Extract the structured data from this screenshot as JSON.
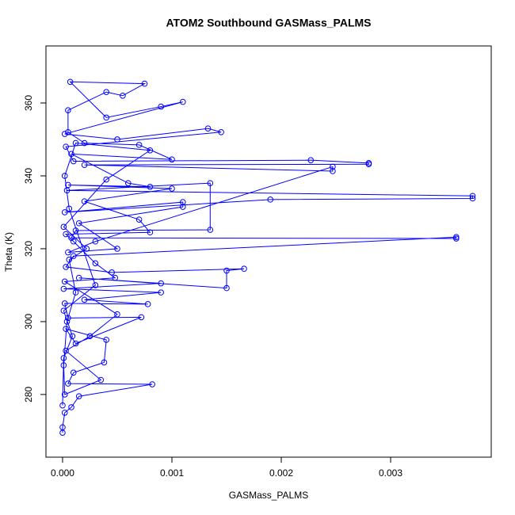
{
  "chart_data": {
    "type": "scatter",
    "lines": true,
    "title": "ATOM2 Southbound GASMass_PALMS",
    "x_label": "GASMass_PALMS",
    "y_label": "Theta (K)",
    "color": "#0000ff",
    "xlim": [
      -0.000152,
      0.00392
    ],
    "ylim": [
      262.8,
      375.65
    ],
    "xticks": [
      {
        "value": 0,
        "label": "0.000"
      },
      {
        "value": 0.001,
        "label": "0.001"
      },
      {
        "value": 0.002,
        "label": "0.002"
      },
      {
        "value": 0.003,
        "label": "0.003"
      }
    ],
    "yticks": [
      280,
      300,
      320,
      340,
      360
    ],
    "x": [
      0.0,
      0.0,
      2e-05,
      8e-05,
      0.00015,
      0.00082,
      5e-05,
      0.0001,
      0.00038,
      0.0004,
      3e-05,
      0.00012,
      0.00072,
      5e-05,
      2e-05,
      0.00078,
      0.0002,
      0.0009,
      1e-05,
      0.0009,
      0.00015,
      0.0015,
      0.0015,
      0.00166,
      0.00045,
      3e-05,
      0.0001,
      0.0036,
      0.0036,
      8e-05,
      0.00012,
      0.00135,
      0.00135,
      4e-05,
      0.00375,
      0.00375,
      0.0019,
      2e-05,
      0.0011,
      0.0011,
      0.00015,
      0.0005,
      5e-05,
      0.0003,
      0.00247,
      0.00247,
      0.0002,
      0.0028,
      0.0028,
      0.00227,
      0.0001,
      3e-05,
      0.00145,
      0.00133,
      0.0005,
      2e-05,
      0.0011,
      0.0009,
      0.0004,
      7e-05,
      0.00075,
      0.00055,
      0.0004,
      5e-05,
      5e-05,
      0.0002,
      0.0007,
      0.001,
      8e-05,
      0.0006,
      0.0008,
      5e-05,
      0.001,
      0.0002,
      0.0007,
      0.0008,
      3e-05,
      0.0001,
      0.0003,
      0.00048,
      2e-05,
      0.0005,
      0.00025,
      3e-05,
      0.00035,
      2e-05,
      1e-05,
      4e-05,
      0.00012,
      6e-05,
      0.00022,
      1e-05,
      0.0004,
      0.0008,
      0.00012,
      2e-05,
      6e-05,
      0.0003,
      1e-05,
      9e-05,
      1e-05,
      0.0
    ],
    "values": [
      269.5,
      271,
      275,
      276.5,
      279.5,
      282.8,
      283,
      286,
      288.8,
      295,
      298,
      294,
      301.2,
      301,
      305,
      304.8,
      306,
      308,
      309,
      310.5,
      312,
      309.2,
      314,
      314.5,
      313.5,
      315,
      318,
      323.2,
      322.8,
      323,
      325,
      325.2,
      338,
      336,
      334.5,
      333.8,
      333.5,
      330,
      332.8,
      331.5,
      327,
      320,
      319,
      322,
      342.5,
      341.3,
      343,
      343.2,
      343.5,
      344.3,
      344,
      348,
      352,
      353,
      350,
      351.5,
      360.3,
      359,
      356,
      365.8,
      365.3,
      362,
      363,
      358,
      352,
      349,
      348.5,
      344.5,
      346,
      338,
      337,
      337.5,
      336.5,
      333,
      328,
      324.5,
      324,
      322,
      316,
      312,
      311,
      302,
      296,
      292,
      284,
      280,
      288,
      300,
      308,
      317,
      320,
      326,
      339,
      347,
      349,
      340,
      331,
      310,
      303,
      296,
      290,
      277
    ]
  }
}
